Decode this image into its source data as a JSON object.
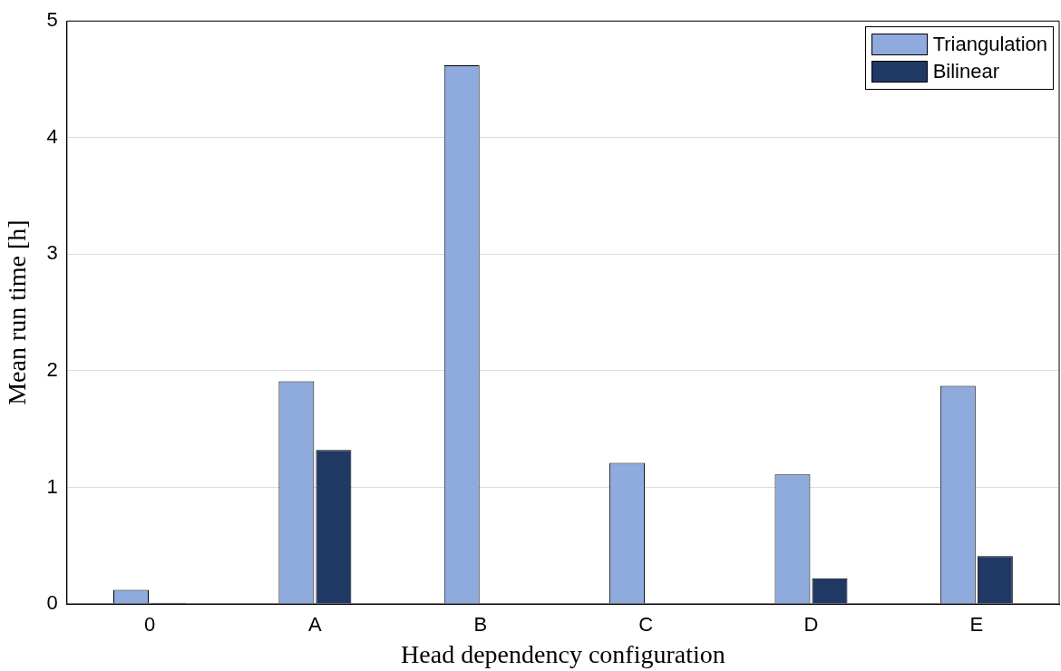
{
  "chart_data": {
    "type": "bar",
    "xlabel": "Head dependency configuration",
    "ylabel": "Mean run time [h]",
    "categories": [
      "0",
      "A",
      "B",
      "C",
      "D",
      "E"
    ],
    "series": [
      {
        "name": "Triangulation",
        "color": "#8faadc",
        "values": [
          0.12,
          1.91,
          4.62,
          1.21,
          1.11,
          1.87
        ]
      },
      {
        "name": "Bilinear",
        "color": "#203864",
        "values": [
          0.01,
          1.32,
          null,
          null,
          0.22,
          0.41
        ]
      }
    ],
    "ylim": [
      0,
      5
    ],
    "yticks": [
      0,
      1,
      2,
      3,
      4,
      5
    ],
    "grid": true,
    "legend": "top right"
  }
}
